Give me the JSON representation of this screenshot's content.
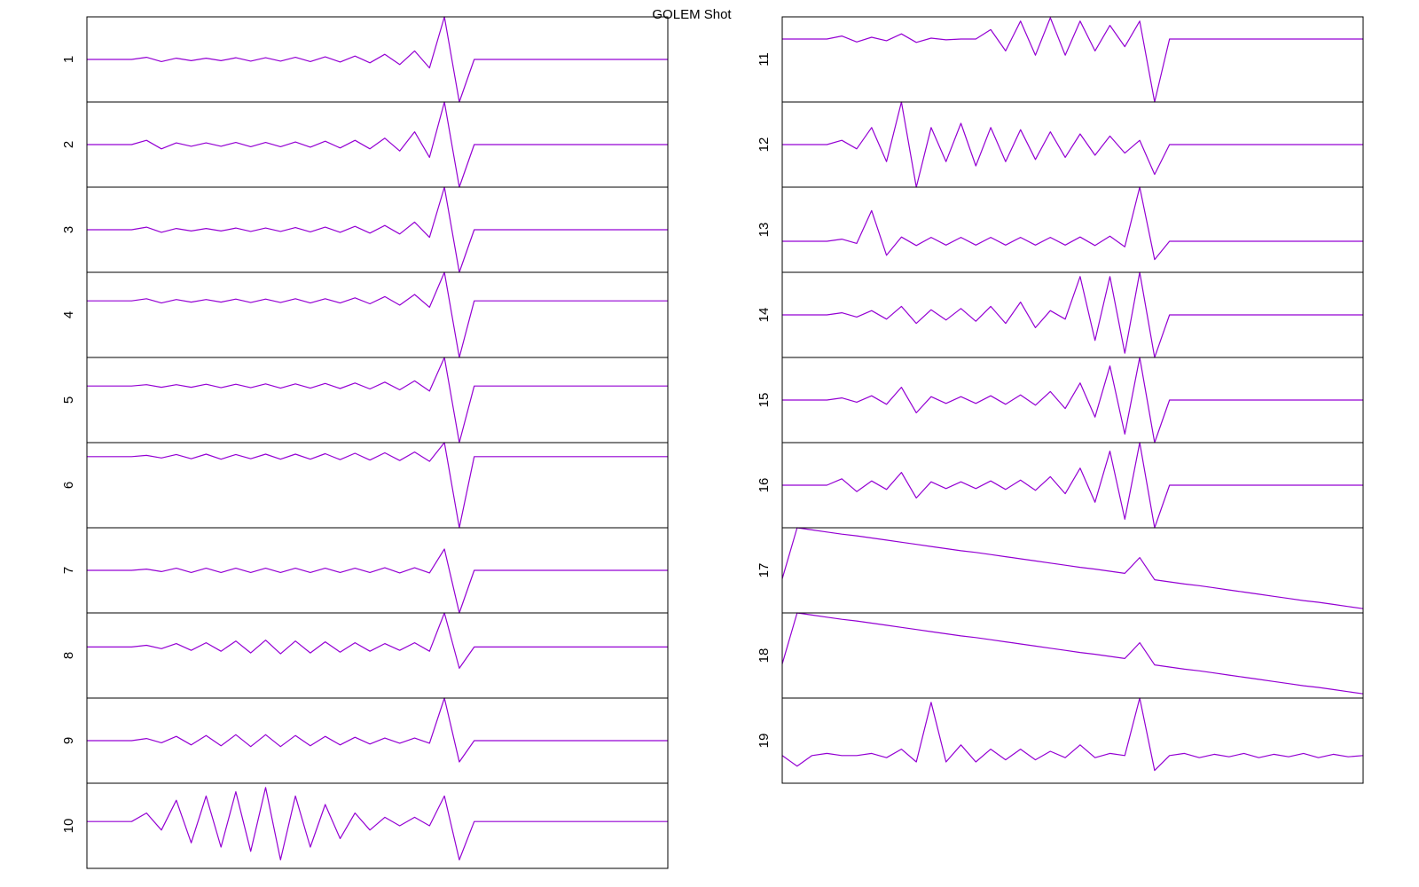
{
  "chart_data": {
    "type": "line",
    "title": "GOLEM Shot",
    "color": "#9400d3",
    "ylim": [
      -1,
      1
    ],
    "panels": [
      {
        "label": "1",
        "values": [
          0,
          0,
          0,
          0,
          0.05,
          -0.05,
          0.03,
          -0.03,
          0.03,
          -0.03,
          0.04,
          -0.04,
          0.04,
          -0.04,
          0.05,
          -0.05,
          0.06,
          -0.06,
          0.08,
          -0.08,
          0.12,
          -0.12,
          0.2,
          -0.2,
          1,
          -1,
          0,
          0,
          0,
          0,
          0,
          0,
          0,
          0,
          0,
          0,
          0,
          0,
          0,
          0
        ]
      },
      {
        "label": "2",
        "values": [
          0,
          0,
          0,
          0,
          0.1,
          -0.1,
          0.04,
          -0.04,
          0.04,
          -0.04,
          0.05,
          -0.05,
          0.05,
          -0.05,
          0.06,
          -0.06,
          0.08,
          -0.08,
          0.1,
          -0.1,
          0.15,
          -0.15,
          0.3,
          -0.3,
          1,
          -1,
          0,
          0,
          0,
          0,
          0,
          0,
          0,
          0,
          0,
          0,
          0,
          0,
          0,
          0
        ]
      },
      {
        "label": "3",
        "values": [
          0,
          0,
          0,
          0,
          0.06,
          -0.06,
          0.03,
          -0.03,
          0.03,
          -0.03,
          0.04,
          -0.04,
          0.04,
          -0.04,
          0.05,
          -0.05,
          0.06,
          -0.06,
          0.08,
          -0.08,
          0.1,
          -0.1,
          0.18,
          -0.18,
          1,
          -1,
          0,
          0,
          0,
          0,
          0,
          0,
          0,
          0,
          0,
          0,
          0,
          0,
          0,
          0
        ]
      },
      {
        "label": "4",
        "values": [
          0.33,
          0.33,
          0.33,
          0.33,
          0.38,
          0.28,
          0.36,
          0.3,
          0.36,
          0.3,
          0.37,
          0.29,
          0.37,
          0.29,
          0.38,
          0.28,
          0.38,
          0.28,
          0.4,
          0.26,
          0.43,
          0.23,
          0.48,
          0.18,
          1,
          -1,
          0.33,
          0.33,
          0.33,
          0.33,
          0.33,
          0.33,
          0.33,
          0.33,
          0.33,
          0.33,
          0.33,
          0.33,
          0.33,
          0.33
        ]
      },
      {
        "label": "5",
        "values": [
          0.33,
          0.33,
          0.33,
          0.33,
          0.36,
          0.3,
          0.36,
          0.3,
          0.37,
          0.29,
          0.37,
          0.29,
          0.38,
          0.28,
          0.38,
          0.28,
          0.39,
          0.27,
          0.4,
          0.26,
          0.42,
          0.24,
          0.45,
          0.21,
          1,
          -1,
          0.33,
          0.33,
          0.33,
          0.33,
          0.33,
          0.33,
          0.33,
          0.33,
          0.33,
          0.33,
          0.33,
          0.33,
          0.33,
          0.33
        ]
      },
      {
        "label": "6",
        "values": [
          0.67,
          0.67,
          0.67,
          0.67,
          0.7,
          0.64,
          0.72,
          0.62,
          0.73,
          0.61,
          0.72,
          0.62,
          0.73,
          0.61,
          0.73,
          0.61,
          0.74,
          0.6,
          0.75,
          0.59,
          0.76,
          0.58,
          0.78,
          0.56,
          1,
          -1,
          0.67,
          0.67,
          0.67,
          0.67,
          0.67,
          0.67,
          0.67,
          0.67,
          0.67,
          0.67,
          0.67,
          0.67,
          0.67,
          0.67
        ]
      },
      {
        "label": "7",
        "values": [
          0,
          0,
          0,
          0,
          0.03,
          -0.03,
          0.05,
          -0.05,
          0.05,
          -0.05,
          0.05,
          -0.05,
          0.05,
          -0.05,
          0.05,
          -0.05,
          0.05,
          -0.05,
          0.05,
          -0.05,
          0.06,
          -0.06,
          0.06,
          -0.06,
          0.5,
          -1,
          0,
          0,
          0,
          0,
          0,
          0,
          0,
          0,
          0,
          0,
          0,
          0,
          0,
          0
        ]
      },
      {
        "label": "8",
        "values": [
          0.2,
          0.2,
          0.2,
          0.2,
          0.24,
          0.16,
          0.28,
          0.12,
          0.3,
          0.1,
          0.34,
          0.06,
          0.36,
          0.04,
          0.34,
          0.06,
          0.32,
          0.08,
          0.3,
          0.1,
          0.28,
          0.12,
          0.3,
          0.1,
          1,
          -0.3,
          0.2,
          0.2,
          0.2,
          0.2,
          0.2,
          0.2,
          0.2,
          0.2,
          0.2,
          0.2,
          0.2,
          0.2,
          0.2,
          0.2
        ]
      },
      {
        "label": "9",
        "values": [
          0,
          0,
          0,
          0,
          0.05,
          -0.05,
          0.1,
          -0.1,
          0.12,
          -0.12,
          0.14,
          -0.14,
          0.14,
          -0.14,
          0.12,
          -0.12,
          0.1,
          -0.1,
          0.08,
          -0.08,
          0.06,
          -0.06,
          0.06,
          -0.06,
          1,
          -0.5,
          0,
          0,
          0,
          0,
          0,
          0,
          0,
          0,
          0,
          0,
          0,
          0,
          0,
          0
        ]
      },
      {
        "label": "10",
        "values": [
          0.1,
          0.1,
          0.1,
          0.1,
          0.3,
          -0.1,
          0.6,
          -0.4,
          0.7,
          -0.5,
          0.8,
          -0.6,
          0.9,
          -0.8,
          0.7,
          -0.5,
          0.5,
          -0.3,
          0.3,
          -0.1,
          0.2,
          0,
          0.2,
          0,
          0.7,
          -0.8,
          0.1,
          0.1,
          0.1,
          0.1,
          0.1,
          0.1,
          0.1,
          0.1,
          0.1,
          0.1,
          0.1,
          0.1,
          0.1,
          0.1
        ]
      },
      {
        "label": "11",
        "values": [
          0.48,
          0.48,
          0.48,
          0.48,
          0.55,
          0.41,
          0.52,
          0.44,
          0.6,
          0.4,
          0.5,
          0.46,
          0.48,
          0.48,
          0.7,
          0.2,
          0.9,
          0.1,
          0.98,
          0.1,
          0.9,
          0.2,
          0.8,
          0.3,
          0.9,
          -1,
          0.48,
          0.48,
          0.48,
          0.48,
          0.48,
          0.48,
          0.48,
          0.48,
          0.48,
          0.48,
          0.48,
          0.48,
          0.48,
          0.48
        ]
      },
      {
        "label": "12",
        "values": [
          0,
          0,
          0,
          0,
          0.1,
          -0.1,
          0.4,
          -0.4,
          1,
          -1,
          0.4,
          -0.4,
          0.5,
          -0.5,
          0.4,
          -0.4,
          0.35,
          -0.35,
          0.3,
          -0.3,
          0.25,
          -0.25,
          0.2,
          -0.2,
          0.1,
          -0.7,
          0,
          0,
          0,
          0,
          0,
          0,
          0,
          0,
          0,
          0,
          0,
          0,
          0,
          0
        ]
      },
      {
        "label": "13",
        "values": [
          -0.27,
          -0.27,
          -0.27,
          -0.27,
          -0.22,
          -0.32,
          0.45,
          -0.6,
          -0.17,
          -0.37,
          -0.18,
          -0.36,
          -0.18,
          -0.36,
          -0.18,
          -0.36,
          -0.18,
          -0.36,
          -0.18,
          -0.36,
          -0.17,
          -0.37,
          -0.15,
          -0.4,
          1,
          -0.7,
          -0.27,
          -0.27,
          -0.27,
          -0.27,
          -0.27,
          -0.27,
          -0.27,
          -0.27,
          -0.27,
          -0.27,
          -0.27,
          -0.27,
          -0.27,
          -0.27
        ]
      },
      {
        "label": "14",
        "values": [
          0,
          0,
          0,
          0,
          0.05,
          -0.05,
          0.1,
          -0.1,
          0.2,
          -0.2,
          0.12,
          -0.12,
          0.15,
          -0.15,
          0.2,
          -0.2,
          0.3,
          -0.3,
          0.1,
          -0.1,
          0.9,
          -0.6,
          0.9,
          -0.9,
          1,
          -1,
          0,
          0,
          0,
          0,
          0,
          0,
          0,
          0,
          0,
          0,
          0,
          0,
          0,
          0
        ]
      },
      {
        "label": "15",
        "values": [
          0,
          0,
          0,
          0,
          0.05,
          -0.05,
          0.1,
          -0.1,
          0.3,
          -0.3,
          0.08,
          -0.08,
          0.08,
          -0.08,
          0.1,
          -0.1,
          0.12,
          -0.12,
          0.2,
          -0.2,
          0.4,
          -0.4,
          0.8,
          -0.8,
          1,
          -1,
          0,
          0,
          0,
          0,
          0,
          0,
          0,
          0,
          0,
          0,
          0,
          0,
          0,
          0
        ]
      },
      {
        "label": "16",
        "values": [
          0,
          0,
          0,
          0,
          0.15,
          -0.15,
          0.1,
          -0.1,
          0.3,
          -0.3,
          0.08,
          -0.08,
          0.08,
          -0.08,
          0.1,
          -0.1,
          0.12,
          -0.12,
          0.2,
          -0.2,
          0.4,
          -0.4,
          0.8,
          -0.8,
          1,
          -1,
          0,
          0,
          0,
          0,
          0,
          0,
          0,
          0,
          0,
          0,
          0,
          0,
          0,
          0
        ]
      },
      {
        "label": "17",
        "values": [
          -0.2,
          1,
          0.95,
          0.9,
          0.85,
          0.81,
          0.76,
          0.71,
          0.66,
          0.61,
          0.56,
          0.51,
          0.46,
          0.42,
          0.37,
          0.32,
          0.27,
          0.22,
          0.17,
          0.12,
          0.07,
          0.03,
          -0.02,
          -0.07,
          0.3,
          -0.22,
          -0.27,
          -0.32,
          -0.36,
          -0.41,
          -0.46,
          -0.51,
          -0.56,
          -0.61,
          -0.66,
          -0.71,
          -0.75,
          -0.8,
          -0.85,
          -0.9
        ]
      },
      {
        "label": "18",
        "values": [
          -0.2,
          1,
          0.95,
          0.9,
          0.85,
          0.81,
          0.76,
          0.71,
          0.66,
          0.61,
          0.56,
          0.51,
          0.46,
          0.42,
          0.37,
          0.32,
          0.27,
          0.22,
          0.17,
          0.12,
          0.07,
          0.03,
          -0.02,
          -0.07,
          0.3,
          -0.22,
          -0.27,
          -0.32,
          -0.36,
          -0.41,
          -0.46,
          -0.51,
          -0.56,
          -0.61,
          -0.66,
          -0.71,
          -0.75,
          -0.8,
          -0.85,
          -0.9
        ]
      },
      {
        "label": "19",
        "values": [
          -0.35,
          -0.6,
          -0.35,
          -0.3,
          -0.35,
          -0.35,
          -0.3,
          -0.4,
          -0.2,
          -0.5,
          0.9,
          -0.5,
          -0.1,
          -0.5,
          -0.2,
          -0.45,
          -0.2,
          -0.45,
          -0.25,
          -0.4,
          -0.1,
          -0.4,
          -0.3,
          -0.35,
          1,
          -0.7,
          -0.35,
          -0.3,
          -0.4,
          -0.32,
          -0.38,
          -0.3,
          -0.4,
          -0.32,
          -0.38,
          -0.3,
          -0.4,
          -0.32,
          -0.38,
          -0.35
        ]
      }
    ]
  }
}
